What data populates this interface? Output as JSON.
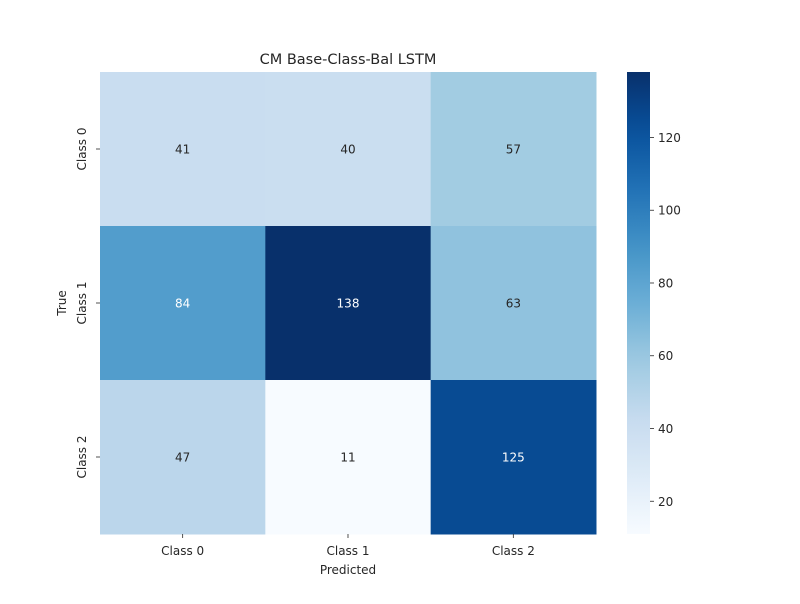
{
  "chart_data": {
    "type": "heatmap",
    "title": "CM Base-Class-Bal LSTM",
    "xlabel": "Predicted",
    "ylabel": "True",
    "x_categories": [
      "Class 0",
      "Class 1",
      "Class 2"
    ],
    "y_categories": [
      "Class 0",
      "Class 1",
      "Class 2"
    ],
    "values": [
      [
        41,
        40,
        57
      ],
      [
        84,
        138,
        63
      ],
      [
        47,
        11,
        125
      ]
    ],
    "colormap": "Blues",
    "value_range": [
      11,
      138
    ],
    "colorbar_ticks": [
      20,
      40,
      60,
      80,
      100,
      120
    ],
    "colors": {
      "low": "#f7fbff",
      "high": "#08306b",
      "text_dark": "#262626",
      "text_light": "#ffffff"
    }
  }
}
